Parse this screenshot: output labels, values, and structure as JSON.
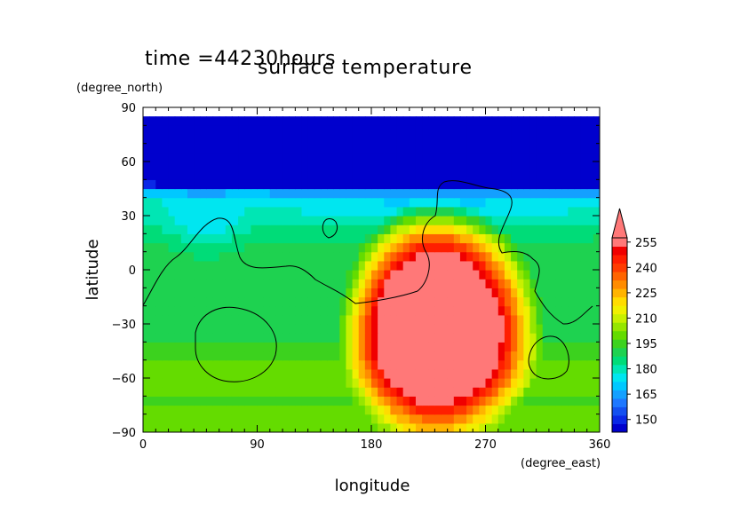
{
  "chart_data": {
    "type": "heatmap",
    "time_label": "time  =44230hours",
    "title": "surface temperature",
    "xlabel": "longitude",
    "ylabel": "latitude",
    "x_unit": "(degree_east)",
    "y_unit": "(degree_north)",
    "xlim": [
      0,
      360
    ],
    "ylim": [
      -90,
      90
    ],
    "x_ticks": [
      "0",
      "90",
      "180",
      "270",
      "360"
    ],
    "y_ticks": [
      "90",
      "60",
      "30",
      "0",
      "−30",
      "−60",
      "−90"
    ],
    "colorbar": {
      "levels": [
        145,
        150,
        155,
        160,
        165,
        170,
        175,
        180,
        185,
        190,
        195,
        200,
        205,
        210,
        215,
        220,
        225,
        230,
        235,
        240,
        245,
        250,
        255
      ],
      "labels": [
        "150",
        "165",
        "180",
        "195",
        "210",
        "225",
        "240",
        "255"
      ],
      "extend": "max"
    },
    "field": {
      "cold_plateau_value": 140,
      "hot_plateau_value": 262,
      "hot_center_lon": 230,
      "hot_center_lat": -35,
      "lon_step": 5,
      "lat_step": 5
    }
  },
  "colors": {
    "scale": [
      "#0000cd",
      "#0a28e6",
      "#1450f0",
      "#1e78ff",
      "#14a0ff",
      "#00c8ff",
      "#00e6f0",
      "#00e6b4",
      "#00dc78",
      "#1ed250",
      "#3cd21e",
      "#64dc00",
      "#96e600",
      "#c8f000",
      "#f0f000",
      "#ffdc00",
      "#ffb400",
      "#ff8c00",
      "#ff6400",
      "#ff3c00",
      "#ff1e00",
      "#f00000",
      "#ff7878"
    ],
    "coast": "#000000"
  }
}
